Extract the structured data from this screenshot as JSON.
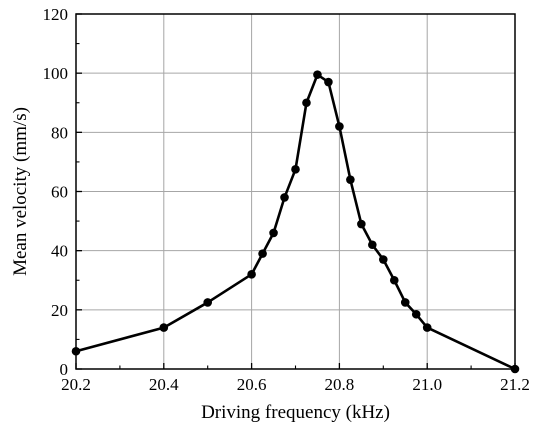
{
  "chart_data": {
    "type": "line",
    "title": "",
    "xlabel": "Driving frequency (kHz)",
    "ylabel": "Mean velocity (mm/s)",
    "xlim": [
      20.2,
      21.2
    ],
    "ylim": [
      0,
      120
    ],
    "xticks": [
      "20.2",
      "20.4",
      "20.6",
      "20.8",
      "21.0",
      "21.2"
    ],
    "yticks": [
      "0",
      "20",
      "40",
      "60",
      "80",
      "100",
      "120"
    ],
    "grid": true,
    "legend": "none",
    "markers": "filled circles",
    "series": [
      {
        "color": "#000000",
        "x": [
          20.2,
          20.4,
          20.5,
          20.6,
          20.625,
          20.65,
          20.675,
          20.7,
          20.725,
          20.75,
          20.775,
          20.8,
          20.825,
          20.85,
          20.875,
          20.9,
          20.925,
          20.95,
          20.975,
          21.0,
          21.2
        ],
        "y": [
          6,
          14,
          22.5,
          32,
          39,
          46,
          58,
          67.5,
          90,
          99.5,
          97,
          82,
          64,
          49,
          42,
          37,
          30,
          22.5,
          18.5,
          14,
          0
        ]
      }
    ]
  }
}
